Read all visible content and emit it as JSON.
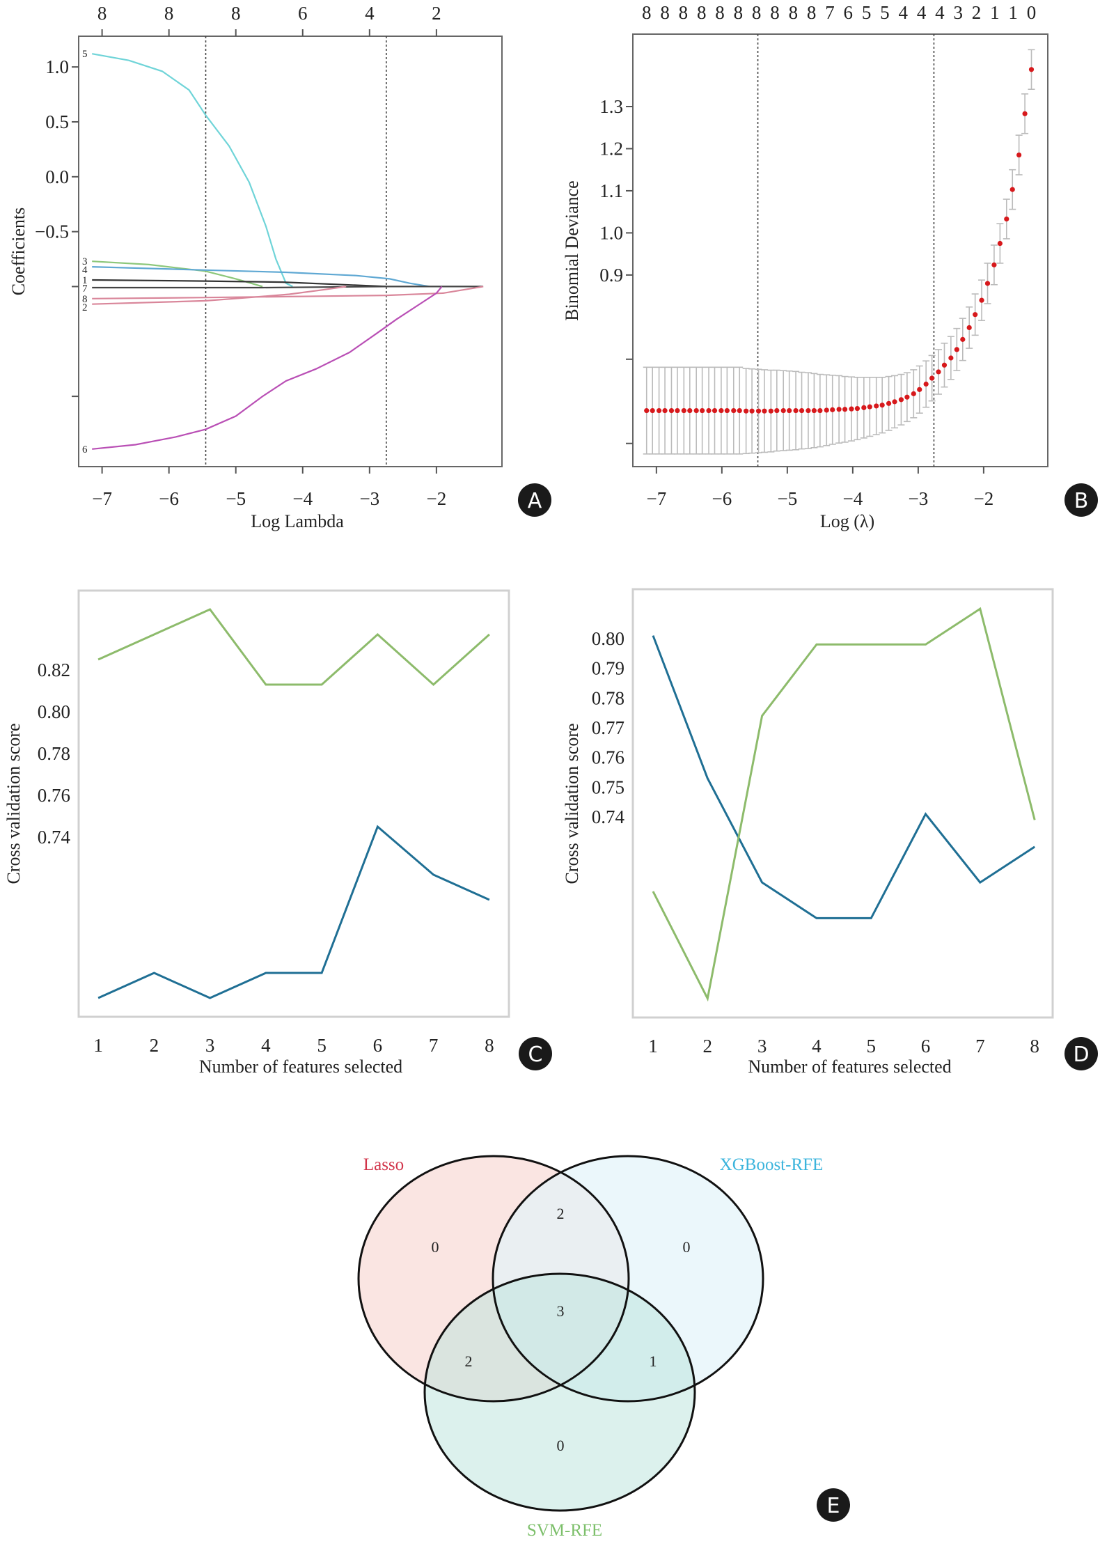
{
  "chart_data": [
    {
      "panel": "A",
      "type": "line",
      "title": "",
      "xlabel": "Log Lambda",
      "ylabel": "Coefficients",
      "xlim": [
        -7.35,
        -1.02
      ],
      "ylim": [
        -2.64,
        1.28
      ],
      "x_ticks": [
        {
          "value": -7,
          "label": "−7"
        },
        {
          "value": -6,
          "label": "−6"
        },
        {
          "value": -5,
          "label": "−5"
        },
        {
          "value": -4,
          "label": "−4"
        },
        {
          "value": -3,
          "label": "−3"
        },
        {
          "value": -2,
          "label": "−2"
        }
      ],
      "y_ticks": [
        {
          "value": 1.0,
          "label": "1.0"
        },
        {
          "value": 0.5,
          "label": "0.5"
        },
        {
          "value": 0.0,
          "label": "0.0"
        },
        {
          "value": -0.5,
          "label": "−0.5"
        },
        {
          "value": -1.0,
          "label": ""
        },
        {
          "value": -2.0,
          "label": ""
        }
      ],
      "top_axis": [
        {
          "value": -7,
          "label": "8"
        },
        {
          "value": -6,
          "label": "8"
        },
        {
          "value": -5,
          "label": "8"
        },
        {
          "value": -4,
          "label": "6"
        },
        {
          "value": -3,
          "label": "4"
        },
        {
          "value": -2,
          "label": "2"
        }
      ],
      "vlines": [
        -5.45,
        -2.75
      ],
      "grid": false,
      "series": [
        {
          "name": "5",
          "color": "#6fd4d8",
          "points": [
            [
              -7.15,
              1.12
            ],
            [
              -6.6,
              1.06
            ],
            [
              -6.1,
              0.96
            ],
            [
              -5.7,
              0.79
            ],
            [
              -5.45,
              0.56
            ],
            [
              -5.1,
              0.28
            ],
            [
              -4.8,
              -0.05
            ],
            [
              -4.55,
              -0.45
            ],
            [
              -4.4,
              -0.75
            ],
            [
              -4.25,
              -0.97
            ],
            [
              -4.15,
              -1.0
            ]
          ]
        },
        {
          "name": "3",
          "color": "#8cc77a",
          "points": [
            [
              -7.15,
              -0.77
            ],
            [
              -6.3,
              -0.8
            ],
            [
              -5.45,
              -0.86
            ],
            [
              -5.0,
              -0.93
            ],
            [
              -4.6,
              -1.0
            ]
          ]
        },
        {
          "name": "4",
          "color": "#5fa8d3",
          "points": [
            [
              -7.15,
              -0.82
            ],
            [
              -5.45,
              -0.85
            ],
            [
              -4.25,
              -0.87
            ],
            [
              -3.2,
              -0.9
            ],
            [
              -2.7,
              -0.93
            ],
            [
              -2.4,
              -0.97
            ],
            [
              -2.1,
              -1.0
            ]
          ]
        },
        {
          "name": "1",
          "color": "#333333",
          "points": [
            [
              -7.15,
              -0.94
            ],
            [
              -5.45,
              -0.95
            ],
            [
              -4.3,
              -0.96
            ],
            [
              -3.5,
              -0.98
            ],
            [
              -2.75,
              -1.0
            ]
          ]
        },
        {
          "name": "7",
          "color": "#444444",
          "points": [
            [
              -7.15,
              -1.01
            ],
            [
              -4.6,
              -1.01
            ],
            [
              -2.75,
              -1.0
            ],
            [
              -1.3,
              -1.0
            ]
          ]
        },
        {
          "name": "8",
          "color": "#d9869a",
          "points": [
            [
              -7.15,
              -1.11
            ],
            [
              -5.45,
              -1.1
            ],
            [
              -4.0,
              -1.09
            ],
            [
              -2.75,
              -1.08
            ],
            [
              -1.9,
              -1.06
            ],
            [
              -1.3,
              -1.0
            ]
          ]
        },
        {
          "name": "2",
          "color": "#d9869a",
          "points": [
            [
              -7.15,
              -1.16
            ],
            [
              -5.45,
              -1.13
            ],
            [
              -4.8,
              -1.1
            ],
            [
              -4.2,
              -1.07
            ],
            [
              -3.7,
              -1.03
            ],
            [
              -3.35,
              -1.0
            ]
          ]
        },
        {
          "name": "6",
          "color": "#b94fb5",
          "points": [
            [
              -7.15,
              -2.48
            ],
            [
              -6.5,
              -2.44
            ],
            [
              -5.9,
              -2.37
            ],
            [
              -5.45,
              -2.3
            ],
            [
              -5.0,
              -2.18
            ],
            [
              -4.6,
              -2.0
            ],
            [
              -4.25,
              -1.86
            ],
            [
              -3.8,
              -1.75
            ],
            [
              -3.3,
              -1.6
            ],
            [
              -2.9,
              -1.43
            ],
            [
              -2.6,
              -1.3
            ],
            [
              -2.2,
              -1.14
            ],
            [
              -2.0,
              -1.06
            ],
            [
              -1.92,
              -1.0
            ]
          ]
        }
      ],
      "badge": "A"
    },
    {
      "panel": "B",
      "type": "scatter",
      "title": "",
      "xlabel": "Log (λ)",
      "ylabel": "Binomial Deviance",
      "xlim": [
        -7.36,
        -1.02
      ],
      "ylim": [
        0.445,
        1.472
      ],
      "x_ticks": [
        {
          "value": -7,
          "label": "−7"
        },
        {
          "value": -6,
          "label": "−6"
        },
        {
          "value": -5,
          "label": "−5"
        },
        {
          "value": -4,
          "label": "−4"
        },
        {
          "value": -3,
          "label": "−3"
        },
        {
          "value": -2,
          "label": "−2"
        }
      ],
      "y_ticks": [
        {
          "value": 1.3,
          "label": "1.3"
        },
        {
          "value": 1.2,
          "label": "1.2"
        },
        {
          "value": 1.1,
          "label": "1.1"
        },
        {
          "value": 1.0,
          "label": "1.0"
        },
        {
          "value": 0.9,
          "label": "0.9"
        },
        {
          "value": 0.7,
          "label": ""
        },
        {
          "value": 0.5,
          "label": ""
        }
      ],
      "top_axis_labels": [
        "8",
        "8",
        "8",
        "8",
        "8",
        "8",
        "8",
        "8",
        "8",
        "8",
        "7",
        "6",
        "5",
        "5",
        "4",
        "4",
        "4",
        "3",
        "2",
        "1",
        "1",
        "0"
      ],
      "vlines": [
        -5.45,
        -2.76
      ],
      "grid": false,
      "point_color": "#d7191c",
      "errorbar_color": "#bbbbbb",
      "x": [
        -7.15,
        -7.06,
        -6.96,
        -6.87,
        -6.77,
        -6.68,
        -6.58,
        -6.49,
        -6.39,
        -6.3,
        -6.2,
        -6.11,
        -6.01,
        -5.92,
        -5.82,
        -5.73,
        -5.63,
        -5.54,
        -5.44,
        -5.35,
        -5.25,
        -5.16,
        -5.06,
        -4.97,
        -4.87,
        -4.78,
        -4.68,
        -4.59,
        -4.5,
        -4.4,
        -4.31,
        -4.21,
        -4.12,
        -4.02,
        -3.93,
        -3.83,
        -3.74,
        -3.64,
        -3.55,
        -3.45,
        -3.36,
        -3.26,
        -3.17,
        -3.07,
        -2.98,
        -2.88,
        -2.79,
        -2.69,
        -2.6,
        -2.5,
        -2.41,
        -2.32,
        -2.22,
        -2.13,
        -2.03,
        -1.94,
        -1.84,
        -1.75,
        -1.65,
        -1.56,
        -1.46,
        -1.37,
        -1.27
      ],
      "mean": [
        0.578,
        0.578,
        0.578,
        0.578,
        0.578,
        0.578,
        0.578,
        0.578,
        0.578,
        0.578,
        0.578,
        0.578,
        0.578,
        0.578,
        0.578,
        0.578,
        0.577,
        0.577,
        0.577,
        0.577,
        0.577,
        0.578,
        0.578,
        0.578,
        0.578,
        0.578,
        0.578,
        0.578,
        0.578,
        0.579,
        0.58,
        0.581,
        0.581,
        0.582,
        0.583,
        0.585,
        0.587,
        0.589,
        0.591,
        0.595,
        0.599,
        0.604,
        0.61,
        0.618,
        0.628,
        0.641,
        0.655,
        0.67,
        0.686,
        0.703,
        0.723,
        0.747,
        0.775,
        0.806,
        0.84,
        0.88,
        0.924,
        0.975,
        1.033,
        1.103,
        1.185,
        1.283,
        1.388
      ],
      "se": [
        0.103,
        0.103,
        0.103,
        0.103,
        0.103,
        0.103,
        0.103,
        0.103,
        0.103,
        0.103,
        0.103,
        0.103,
        0.103,
        0.103,
        0.103,
        0.103,
        0.101,
        0.1,
        0.099,
        0.098,
        0.097,
        0.096,
        0.095,
        0.094,
        0.093,
        0.091,
        0.09,
        0.088,
        0.086,
        0.084,
        0.082,
        0.08,
        0.078,
        0.076,
        0.074,
        0.072,
        0.07,
        0.068,
        0.066,
        0.064,
        0.062,
        0.06,
        0.058,
        0.057,
        0.056,
        0.055,
        0.054,
        0.053,
        0.052,
        0.051,
        0.05,
        0.05,
        0.049,
        0.049,
        0.048,
        0.048,
        0.047,
        0.047,
        0.047,
        0.047,
        0.047,
        0.047,
        0.047
      ],
      "badge": "B"
    },
    {
      "panel": "C",
      "type": "line",
      "title": "",
      "xlabel": "Number of features selected",
      "ylabel": "Cross validation score",
      "xlim": [
        0.65,
        8.35
      ],
      "ylim": [
        0.654,
        0.858
      ],
      "x_ticks": [
        {
          "value": 1,
          "label": "1"
        },
        {
          "value": 2,
          "label": "2"
        },
        {
          "value": 3,
          "label": "3"
        },
        {
          "value": 4,
          "label": "4"
        },
        {
          "value": 5,
          "label": "5"
        },
        {
          "value": 6,
          "label": "6"
        },
        {
          "value": 7,
          "label": "7"
        },
        {
          "value": 8,
          "label": "8"
        }
      ],
      "y_ticks": [
        {
          "value": 0.82,
          "label": "0.82"
        },
        {
          "value": 0.8,
          "label": "0.80"
        },
        {
          "value": 0.78,
          "label": "0.78"
        },
        {
          "value": 0.76,
          "label": "0.76"
        },
        {
          "value": 0.74,
          "label": "0.74"
        }
      ],
      "grid": false,
      "x": [
        1,
        2,
        3,
        4,
        5,
        6,
        7,
        8
      ],
      "series": [
        {
          "name": "green",
          "color": "#8dbb6b",
          "values": [
            0.825,
            0.837,
            0.849,
            0.813,
            0.813,
            0.837,
            0.813,
            0.837
          ]
        },
        {
          "name": "blue",
          "color": "#1f6f94",
          "values": [
            0.663,
            0.675,
            0.663,
            0.675,
            0.675,
            0.745,
            0.722,
            0.71
          ]
        }
      ],
      "badge": "C"
    },
    {
      "panel": "D",
      "type": "line",
      "title": "",
      "xlabel": "Number of features selected",
      "ylabel": "Cross validation score",
      "xlim": [
        0.63,
        8.33
      ],
      "ylim": [
        0.6726,
        0.8166
      ],
      "x_ticks": [
        {
          "value": 1,
          "label": "1"
        },
        {
          "value": 2,
          "label": "2"
        },
        {
          "value": 3,
          "label": "3"
        },
        {
          "value": 4,
          "label": "4"
        },
        {
          "value": 5,
          "label": "5"
        },
        {
          "value": 6,
          "label": "6"
        },
        {
          "value": 7,
          "label": "7"
        },
        {
          "value": 8,
          "label": "8"
        }
      ],
      "y_ticks": [
        {
          "value": 0.8,
          "label": "0.80"
        },
        {
          "value": 0.79,
          "label": "0.79"
        },
        {
          "value": 0.78,
          "label": "0.78"
        },
        {
          "value": 0.77,
          "label": "0.77"
        },
        {
          "value": 0.76,
          "label": "0.76"
        },
        {
          "value": 0.75,
          "label": "0.75"
        },
        {
          "value": 0.74,
          "label": "0.74"
        }
      ],
      "grid": false,
      "x": [
        1,
        2,
        3,
        4,
        5,
        6,
        7,
        8
      ],
      "series": [
        {
          "name": "blue",
          "color": "#1f6f94",
          "values": [
            0.801,
            0.753,
            0.718,
            0.706,
            0.706,
            0.741,
            0.718,
            0.73
          ]
        },
        {
          "name": "green",
          "color": "#8dbb6b",
          "values": [
            0.715,
            0.679,
            0.774,
            0.798,
            0.798,
            0.798,
            0.81,
            0.739
          ]
        }
      ],
      "badge": "D"
    }
  ],
  "venn": {
    "badge": "E",
    "sets": [
      {
        "name": "Lasso",
        "label_color": "#d1344a",
        "fill": "#f9e0dd"
      },
      {
        "name": "XGBoost-RFE",
        "label_color": "#3bb4dc",
        "fill": "#e2f3f9"
      },
      {
        "name": "SVM-RFE",
        "label_color": "#7cbf6a",
        "fill": "#d6eeea"
      }
    ],
    "regions": {
      "lasso_only": "0",
      "xgboost_only": "0",
      "svm_only": "0",
      "lasso_xgboost": "2",
      "lasso_svm": "2",
      "xgboost_svm": "1",
      "all_three": "3"
    }
  }
}
